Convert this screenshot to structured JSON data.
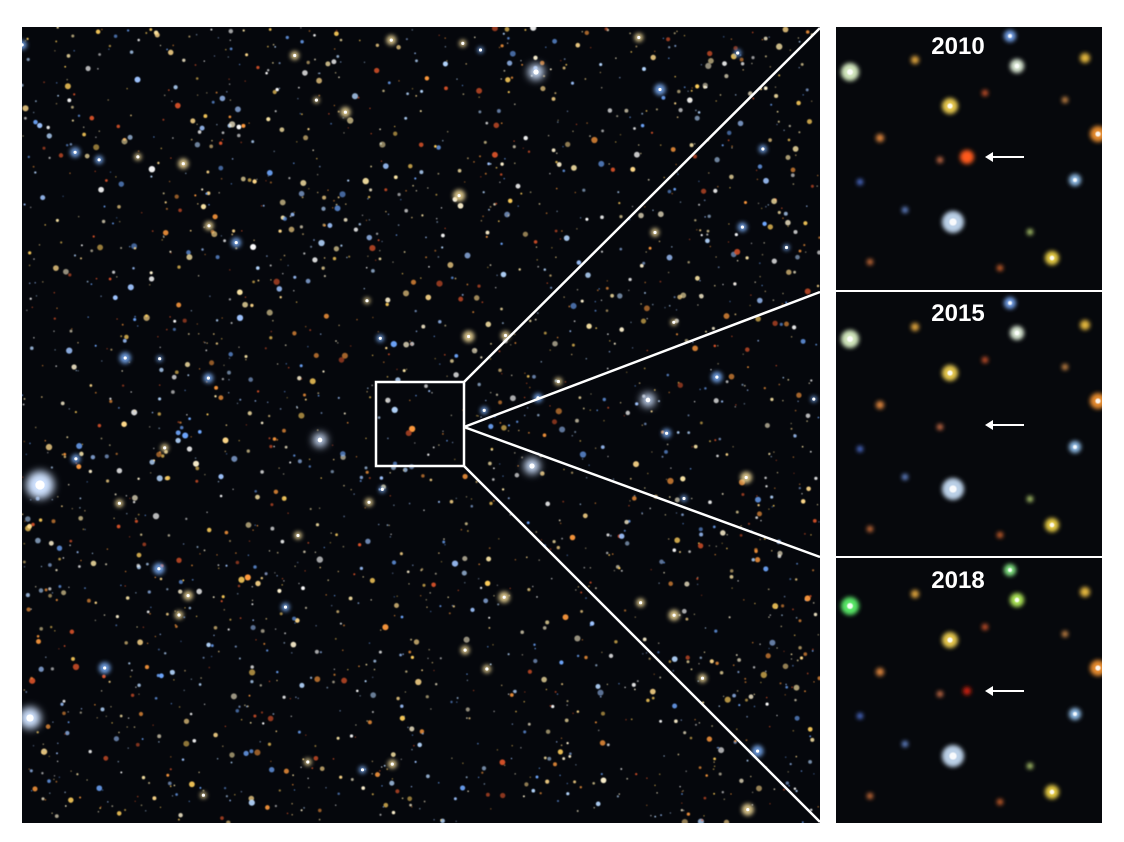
{
  "panels": [
    {
      "label": "2010"
    },
    {
      "label": "2015"
    },
    {
      "label": "2018"
    }
  ]
}
